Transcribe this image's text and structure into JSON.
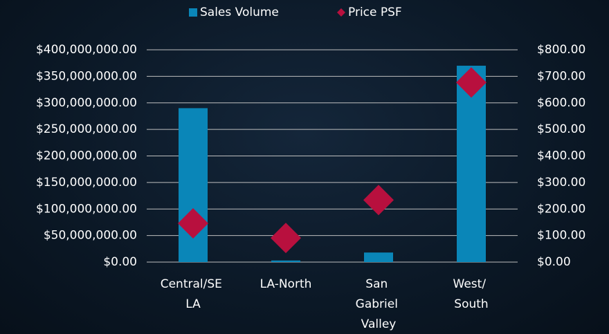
{
  "chart_data": {
    "type": "bar_scatter",
    "categories": [
      "Central/SE LA",
      "LA-North",
      "San Gabriel Valley",
      "West/ South"
    ],
    "series": [
      {
        "name": "Sales Volume",
        "type": "bar",
        "color": "#0a86b8",
        "values": [
          290000000,
          3000000,
          18000000,
          370000000
        ]
      },
      {
        "name": "Price PSF",
        "type": "scatter",
        "axis": "y2",
        "color": "#b8103e",
        "values": [
          146,
          91,
          234,
          677
        ]
      }
    ],
    "ylim": [
      0,
      400000000
    ],
    "yticks": [
      {
        "value": 0,
        "label": "$0.00"
      },
      {
        "value": 50000000,
        "label": "$50,000,000.00"
      },
      {
        "value": 100000000,
        "label": "$100,000,000.00"
      },
      {
        "value": 150000000,
        "label": "$150,000,000.00"
      },
      {
        "value": 200000000,
        "label": "$200,000,000.00"
      },
      {
        "value": 250000000,
        "label": "$250,000,000.00"
      },
      {
        "value": 300000000,
        "label": "$300,000,000.00"
      },
      {
        "value": 350000000,
        "label": "$350,000,000.00"
      },
      {
        "value": 400000000,
        "label": "$400,000,000.00"
      }
    ],
    "y2lim": [
      0,
      800
    ],
    "y2ticks": [
      {
        "value": 0,
        "label": "$0.00"
      },
      {
        "value": 100,
        "label": "$100.00"
      },
      {
        "value": 200,
        "label": "$200.00"
      },
      {
        "value": 300,
        "label": "$300.00"
      },
      {
        "value": 400,
        "label": "$400.00"
      },
      {
        "value": 500,
        "label": "$500.00"
      },
      {
        "value": 600,
        "label": "$600.00"
      },
      {
        "value": 700,
        "label": "$700.00"
      },
      {
        "value": 800,
        "label": "$800.00"
      }
    ],
    "grid": true,
    "legend": "top"
  }
}
